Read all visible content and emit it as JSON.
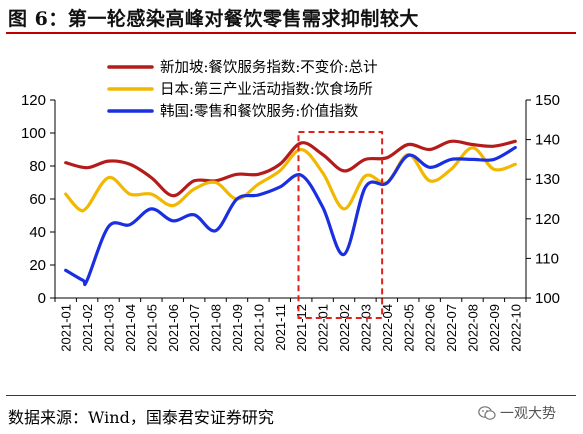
{
  "figure": {
    "title": "图 6：第一轮感染高峰对餐饮零售需求抑制较大",
    "source": "数据来源：Wind，国泰君安证券研究",
    "watermark": "一观大势"
  },
  "colors": {
    "title_rule": "#c00000",
    "highlight_box": "#e0201b"
  },
  "chart_data": {
    "type": "line",
    "x": [
      "2021-01",
      "2021-02",
      "2021-03",
      "2021-04",
      "2021-05",
      "2021-06",
      "2021-07",
      "2021-08",
      "2021-09",
      "2021-10",
      "2021-11",
      "2021-12",
      "2022-01",
      "2022-02",
      "2022-03",
      "2022-04",
      "2022-05",
      "2022-06",
      "2022-07",
      "2022-08",
      "2022-09",
      "2022-10"
    ],
    "x_ticks": [
      "2021-01",
      "2021-02",
      "2021-03",
      "2021-04",
      "2021-05",
      "2021-06",
      "2021-07",
      "2021-08",
      "2021-09",
      "2021-10",
      "2021-11",
      "2021-12",
      "2022-01",
      "2022-02",
      "2022-03",
      "2022-04",
      "2022-05",
      "2022-06",
      "2022-07",
      "2022-08",
      "2022-09",
      "2022-10"
    ],
    "y_left": {
      "min": 0,
      "max": 120,
      "ticks": [
        0,
        20,
        40,
        60,
        80,
        100,
        120
      ]
    },
    "y_right": {
      "min": 100,
      "max": 150,
      "ticks": [
        100,
        110,
        120,
        130,
        140,
        150
      ]
    },
    "highlight": {
      "from": "2021-12",
      "to": "2022-04"
    },
    "series": [
      {
        "name": "新加坡:餐饮服务指数:不变价:总计",
        "axis": "left",
        "color": "#b41b1b",
        "points": [
          [
            0,
            82
          ],
          [
            1,
            79
          ],
          [
            2,
            83
          ],
          [
            3,
            81
          ],
          [
            4,
            73
          ],
          [
            5,
            62
          ],
          [
            6,
            71
          ],
          [
            7,
            71
          ],
          [
            8,
            75
          ],
          [
            9,
            75
          ],
          [
            10,
            81
          ],
          [
            11,
            94
          ],
          [
            12,
            87
          ],
          [
            13,
            77
          ],
          [
            14,
            84
          ],
          [
            15,
            85
          ],
          [
            16,
            93
          ],
          [
            17,
            90
          ],
          [
            18,
            95
          ],
          [
            19,
            93
          ],
          [
            20,
            92
          ],
          [
            21,
            95
          ]
        ]
      },
      {
        "name": "日本:第三产业活动指数:饮食场所",
        "axis": "left",
        "color": "#f2b800",
        "points": [
          [
            0,
            63
          ],
          [
            0.6,
            54
          ],
          [
            1,
            55
          ],
          [
            2,
            73
          ],
          [
            3,
            63
          ],
          [
            4,
            63
          ],
          [
            5,
            56
          ],
          [
            6,
            66
          ],
          [
            7,
            70
          ],
          [
            8,
            60
          ],
          [
            9,
            69
          ],
          [
            10,
            77
          ],
          [
            11,
            90
          ],
          [
            12,
            76
          ],
          [
            13,
            54
          ],
          [
            14,
            74
          ],
          [
            15,
            70
          ],
          [
            16,
            87
          ],
          [
            17,
            71
          ],
          [
            18,
            78
          ],
          [
            19,
            91
          ],
          [
            20,
            78
          ],
          [
            21,
            81
          ]
        ]
      },
      {
        "name": "韩国:零售和餐饮服务:价值指数",
        "axis": "right",
        "color": "#1a2fe0",
        "points": [
          [
            0,
            107
          ],
          [
            0.8,
            104.5
          ],
          [
            1,
            104.5
          ],
          [
            2,
            118
          ],
          [
            3,
            118.5
          ],
          [
            4,
            122.5
          ],
          [
            5,
            119.5
          ],
          [
            6,
            121
          ],
          [
            7,
            117
          ],
          [
            8,
            125
          ],
          [
            9,
            126
          ],
          [
            10,
            128
          ],
          [
            11,
            131
          ],
          [
            12,
            123
          ],
          [
            13,
            111
          ],
          [
            14,
            128
          ],
          [
            15,
            129
          ],
          [
            16,
            136
          ],
          [
            17,
            133
          ],
          [
            18,
            135
          ],
          [
            19,
            135
          ],
          [
            20,
            135
          ],
          [
            21,
            138
          ]
        ]
      }
    ]
  }
}
